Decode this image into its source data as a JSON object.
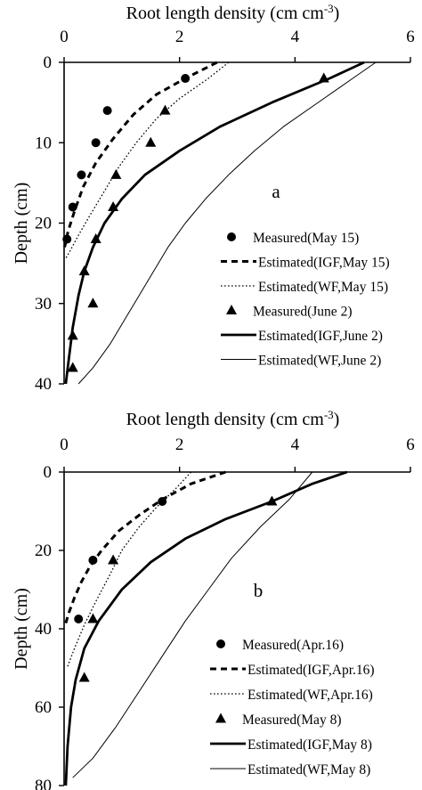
{
  "chart_data": [
    {
      "type": "line",
      "panel_label": "a",
      "xlabel": "Root length density (cm cm",
      "xlabel_sup": "-3",
      "xlabel_close": ")",
      "ylabel": "Depth (cm)",
      "xlim": [
        0,
        6
      ],
      "ylim": [
        0,
        40
      ],
      "xticks": [
        0,
        2,
        4,
        6
      ],
      "yticks": [
        0,
        10,
        20,
        30,
        40
      ],
      "y_inverted": true,
      "x_axis_position": "top",
      "grid": false,
      "legend_position": "bottom-right",
      "series": [
        {
          "name": "Measured(May 15)",
          "kind": "marker",
          "marker": "circle",
          "points": [
            [
              2.1,
              2
            ],
            [
              0.75,
              6
            ],
            [
              0.55,
              10
            ],
            [
              0.3,
              14
            ],
            [
              0.15,
              18
            ],
            [
              0.05,
              22
            ]
          ]
        },
        {
          "name": "Estimated(IGF,May 15)",
          "kind": "line",
          "style": "dashed",
          "points": [
            [
              2.65,
              0
            ],
            [
              2.1,
              2
            ],
            [
              1.6,
              4
            ],
            [
              1.2,
              6.5
            ],
            [
              0.85,
              9.5
            ],
            [
              0.55,
              12.5
            ],
            [
              0.33,
              15.5
            ],
            [
              0.18,
              18.5
            ],
            [
              0.07,
              21
            ],
            [
              0.01,
              23
            ]
          ]
        },
        {
          "name": "Estimated(WF,May 15)",
          "kind": "line",
          "style": "dotted",
          "points": [
            [
              2.85,
              0
            ],
            [
              2.5,
              2
            ],
            [
              2.0,
              4.5
            ],
            [
              1.6,
              7
            ],
            [
              1.25,
              10
            ],
            [
              0.95,
              13
            ],
            [
              0.7,
              16
            ],
            [
              0.45,
              19
            ],
            [
              0.25,
              21.5
            ],
            [
              0.1,
              23.5
            ],
            [
              0.02,
              24.5
            ]
          ]
        },
        {
          "name": "Measured(June 2)",
          "kind": "marker",
          "marker": "triangle",
          "points": [
            [
              4.5,
              2
            ],
            [
              1.75,
              6
            ],
            [
              1.5,
              10
            ],
            [
              0.9,
              14
            ],
            [
              0.85,
              18
            ],
            [
              0.55,
              22
            ],
            [
              0.35,
              26
            ],
            [
              0.5,
              30
            ],
            [
              0.15,
              34
            ],
            [
              0.15,
              38
            ]
          ]
        },
        {
          "name": "Estimated(IGF,June 2)",
          "kind": "line",
          "style": "solid-thick",
          "points": [
            [
              5.2,
              0
            ],
            [
              4.6,
              2
            ],
            [
              3.6,
              5
            ],
            [
              2.7,
              8
            ],
            [
              2.0,
              11
            ],
            [
              1.4,
              14
            ],
            [
              1.0,
              17
            ],
            [
              0.7,
              20
            ],
            [
              0.5,
              23
            ],
            [
              0.35,
              26
            ],
            [
              0.25,
              29
            ],
            [
              0.15,
              33
            ],
            [
              0.08,
              37
            ],
            [
              0.03,
              40
            ]
          ]
        },
        {
          "name": "Estimated(WF,June 2)",
          "kind": "line",
          "style": "solid-thin",
          "points": [
            [
              5.4,
              0
            ],
            [
              5.0,
              2
            ],
            [
              4.4,
              5
            ],
            [
              3.8,
              8
            ],
            [
              3.3,
              11
            ],
            [
              2.85,
              14
            ],
            [
              2.45,
              17
            ],
            [
              2.1,
              20
            ],
            [
              1.8,
              23
            ],
            [
              1.55,
              26
            ],
            [
              1.3,
              29
            ],
            [
              1.05,
              32
            ],
            [
              0.8,
              35
            ],
            [
              0.5,
              38
            ],
            [
              0.25,
              40
            ]
          ]
        }
      ]
    },
    {
      "type": "line",
      "panel_label": "b",
      "xlabel": "Root length density (cm cm",
      "xlabel_sup": "-3",
      "xlabel_close": ")",
      "ylabel": "Depth (cm)",
      "xlim": [
        0,
        6
      ],
      "ylim": [
        0,
        80
      ],
      "xticks": [
        0,
        2,
        4,
        6
      ],
      "yticks": [
        0,
        20,
        40,
        60,
        80
      ],
      "y_inverted": true,
      "x_axis_position": "top",
      "grid": false,
      "legend_position": "bottom-right",
      "series": [
        {
          "name": "Measured(Apr.16)",
          "kind": "marker",
          "marker": "circle",
          "points": [
            [
              1.7,
              7.5
            ],
            [
              0.5,
              22.5
            ],
            [
              0.25,
              37.5
            ]
          ]
        },
        {
          "name": "Estimated(IGF,Apr.16)",
          "kind": "line",
          "style": "dashed",
          "points": [
            [
              2.8,
              0
            ],
            [
              2.2,
              3
            ],
            [
              1.7,
              7
            ],
            [
              1.3,
              11
            ],
            [
              0.95,
              15
            ],
            [
              0.65,
              20
            ],
            [
              0.45,
              24
            ],
            [
              0.3,
              28
            ],
            [
              0.18,
              32
            ],
            [
              0.08,
              36
            ],
            [
              0.02,
              39
            ]
          ]
        },
        {
          "name": "Estimated(WF,Apr.16)",
          "kind": "line",
          "style": "dotted",
          "points": [
            [
              2.2,
              0
            ],
            [
              1.95,
              4
            ],
            [
              1.6,
              9
            ],
            [
              1.3,
              14
            ],
            [
              1.0,
              20
            ],
            [
              0.8,
              26
            ],
            [
              0.55,
              33
            ],
            [
              0.35,
              39
            ],
            [
              0.18,
              45
            ],
            [
              0.05,
              50
            ]
          ]
        },
        {
          "name": "Measured(May 8)",
          "kind": "marker",
          "marker": "triangle",
          "points": [
            [
              3.6,
              7.5
            ],
            [
              0.85,
              22.5
            ],
            [
              0.5,
              37.5
            ],
            [
              0.35,
              52.5
            ]
          ]
        },
        {
          "name": "Estimated(IGF,May 8)",
          "kind": "line",
          "style": "solid-thick",
          "points": [
            [
              4.9,
              0
            ],
            [
              4.3,
              3
            ],
            [
              3.6,
              7.5
            ],
            [
              2.8,
              12
            ],
            [
              2.1,
              17
            ],
            [
              1.5,
              23
            ],
            [
              1.0,
              30
            ],
            [
              0.6,
              38
            ],
            [
              0.35,
              45
            ],
            [
              0.2,
              53
            ],
            [
              0.12,
              60
            ],
            [
              0.06,
              70
            ],
            [
              0.03,
              80
            ]
          ]
        },
        {
          "name": "Estimated(WF,May 8)",
          "kind": "line",
          "style": "solid-thin",
          "points": [
            [
              4.3,
              0
            ],
            [
              3.9,
              7
            ],
            [
              3.4,
              14
            ],
            [
              2.9,
              22
            ],
            [
              2.5,
              30
            ],
            [
              2.1,
              38
            ],
            [
              1.7,
              47
            ],
            [
              1.3,
              56
            ],
            [
              0.9,
              65
            ],
            [
              0.5,
              73
            ],
            [
              0.15,
              78
            ]
          ]
        }
      ]
    }
  ]
}
